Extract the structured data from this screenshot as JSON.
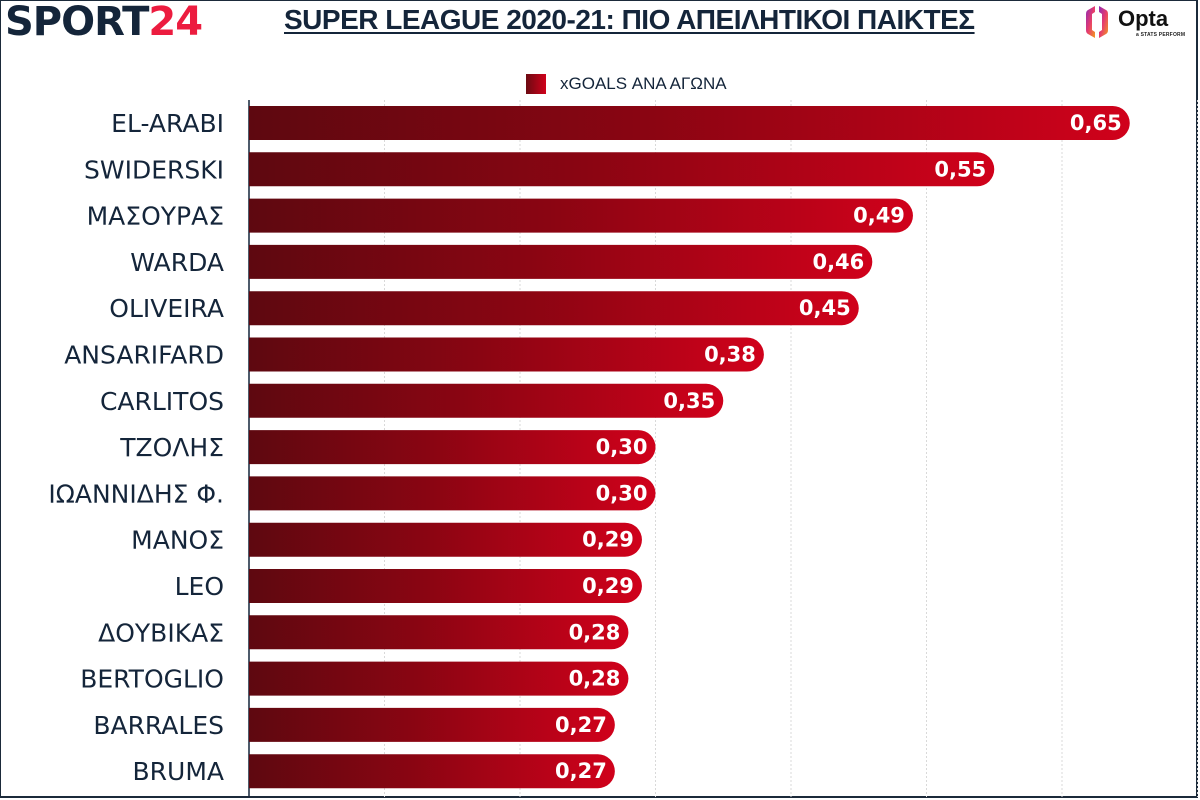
{
  "header": {
    "logo_part1": "SPORT",
    "logo_part2": "24",
    "title": "SUPER LEAGUE 2020-21: ΠΙΟ ΑΠΕΙΛΗΤΙΚΟΙ ΠΑΙΚΤΕΣ",
    "provider_logo": "Opta",
    "provider_sub": "a STATS PERFORM"
  },
  "colors": {
    "bar_start": "#6b0a12",
    "bar_end": "#d0011b",
    "text": "#14253a",
    "brand_red": "#ec1c3f"
  },
  "chart_data": {
    "type": "bar",
    "orientation": "horizontal",
    "title": "SUPER LEAGUE 2020-21: ΠΙΟ ΑΠΕΙΛΗΤΙΚΟΙ ΠΑΙΚΤΕΣ",
    "legend": {
      "label": "xGOALS ΑΝΑ ΑΓΩΝΑ",
      "position": "top"
    },
    "categories": [
      "EL-ARABI",
      "SWIDERSKI",
      "ΜΑΣΟΥΡΑΣ",
      "WARDA",
      "OLIVEIRA",
      "ANSARIFARD",
      "CARLITOS",
      "ΤΖΟΛΗΣ",
      "ΙΩΑΝΝΙΔΗΣ Φ.",
      "ΜΑΝΟΣ",
      "LEO",
      "ΔΟΥΒΙΚΑΣ",
      "BERTOGLIO",
      "BARRALES",
      "BRUMA"
    ],
    "values": [
      0.65,
      0.55,
      0.49,
      0.46,
      0.45,
      0.38,
      0.35,
      0.3,
      0.3,
      0.29,
      0.29,
      0.28,
      0.28,
      0.27,
      0.27
    ],
    "labels": [
      "0,65",
      "0,55",
      "0,49",
      "0,46",
      "0,45",
      "0,38",
      "0,35",
      "0,30",
      "0,30",
      "0,29",
      "0,29",
      "0,28",
      "0,28",
      "0,27",
      "0,27"
    ],
    "xlim": [
      0,
      0.7
    ],
    "grid_step": 0.1,
    "grid": true,
    "xlabel": "",
    "ylabel": ""
  }
}
